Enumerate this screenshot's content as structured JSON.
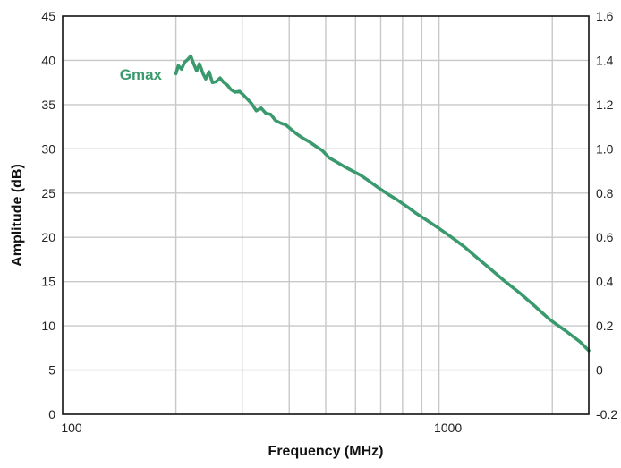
{
  "chart_data": {
    "type": "line",
    "title": "",
    "xlabel": "Frequency (MHz)",
    "ylabel": "Amplitude (dB)",
    "x_scale": "log",
    "xlim": [
      100,
      2500
    ],
    "ylim": [
      0,
      45
    ],
    "y2lim": [
      -0.2,
      1.6
    ],
    "grid": true,
    "x_major_ticks": [
      100,
      1000
    ],
    "x_tick_labels": [
      "100",
      "1000"
    ],
    "x_grid_lines": [
      200,
      300,
      400,
      500,
      600,
      700,
      800,
      900,
      1000,
      2000
    ],
    "y_ticks": [
      0,
      5,
      10,
      15,
      20,
      25,
      30,
      35,
      40,
      45
    ],
    "y_tick_labels": [
      "0",
      "5",
      "10",
      "15",
      "20",
      "25",
      "30",
      "35",
      "40",
      "45"
    ],
    "y2_ticks": [
      -0.2,
      0,
      0.2,
      0.4,
      0.6,
      0.8,
      1.0,
      1.2,
      1.4,
      1.6
    ],
    "y2_tick_labels": [
      "-0.2",
      "0",
      "0.2",
      "0.4",
      "0.6",
      "0.8",
      "1.0",
      "1.2",
      "1.4",
      "1.6"
    ],
    "colors": {
      "series": "#3a9a6e",
      "grid": "#c8c8c8",
      "axis": "#111111"
    },
    "series": [
      {
        "name": "Gmax",
        "x": [
          200,
          203,
          207,
          211,
          215,
          219,
          223,
          227,
          231,
          236,
          240,
          245,
          250,
          256,
          262,
          268,
          274,
          280,
          287,
          295,
          302,
          310,
          318,
          327,
          337,
          347,
          357,
          368,
          380,
          392,
          405,
          418,
          435,
          452,
          470,
          490,
          510,
          535,
          560,
          590,
          620,
          650,
          690,
          730,
          770,
          820,
          870,
          930,
          1000,
          1080,
          1170,
          1270,
          1380,
          1500,
          1640,
          1800,
          1970,
          2160,
          2370,
          2500
        ],
        "y": [
          38.5,
          39.4,
          39.0,
          39.8,
          40.1,
          40.5,
          39.6,
          38.8,
          39.6,
          38.5,
          37.9,
          38.7,
          37.5,
          37.6,
          38.0,
          37.5,
          37.2,
          36.7,
          36.4,
          36.5,
          36.1,
          35.6,
          35.1,
          34.3,
          34.6,
          34.0,
          33.9,
          33.2,
          32.9,
          32.7,
          32.2,
          31.7,
          31.2,
          30.8,
          30.3,
          29.8,
          29.0,
          28.5,
          28.0,
          27.5,
          27.0,
          26.4,
          25.6,
          24.9,
          24.3,
          23.5,
          22.7,
          21.9,
          21.0,
          20.0,
          18.9,
          17.6,
          16.3,
          15.0,
          13.7,
          12.2,
          10.7,
          9.5,
          8.2,
          7.2
        ]
      }
    ]
  }
}
